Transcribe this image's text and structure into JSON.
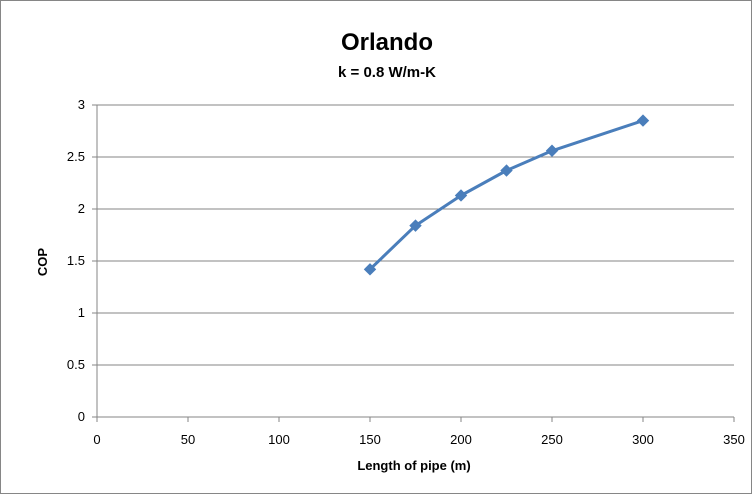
{
  "chart_data": {
    "type": "line",
    "title": "Orlando",
    "subtitle": "k = 0.8 W/m-K",
    "xlabel": "Length of pipe (m)",
    "ylabel": "COP",
    "xlim": [
      0,
      350
    ],
    "ylim": [
      0,
      3
    ],
    "x_ticks": [
      0,
      50,
      100,
      150,
      200,
      250,
      300,
      350
    ],
    "y_ticks": [
      0,
      0.5,
      1,
      1.5,
      2,
      2.5,
      3
    ],
    "x_tick_labels": [
      "0",
      "50",
      "100",
      "150",
      "200",
      "250",
      "300",
      "350"
    ],
    "y_tick_labels": [
      "0",
      "0.5",
      "1",
      "1.5",
      "2",
      "2.5",
      "3"
    ],
    "grid": "horizontal",
    "legend": "none",
    "series": [
      {
        "x": [
          150,
          175,
          200,
          225,
          250,
          300
        ],
        "y": [
          1.42,
          1.84,
          2.13,
          2.37,
          2.56,
          2.85
        ],
        "marker": "diamond",
        "color": "#4a7ebb"
      }
    ]
  }
}
